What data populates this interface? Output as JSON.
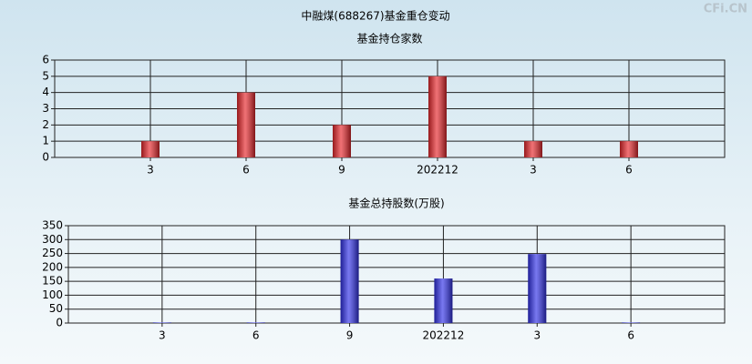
{
  "title": "中融煤(688267)基金重仓变动",
  "watermark": "CFi.CN",
  "chart_data": [
    {
      "type": "bar",
      "title": "基金持仓家数",
      "categories": [
        "3",
        "6",
        "9",
        "202212",
        "3",
        "6"
      ],
      "values": [
        1,
        4,
        2,
        5,
        1,
        1
      ],
      "color": "#e8262b",
      "ylim": [
        0,
        6
      ],
      "yticks": [
        0,
        1,
        2,
        3,
        4,
        5,
        6
      ],
      "grid": true
    },
    {
      "type": "bar",
      "title": "基金总持股数(万股)",
      "categories": [
        "3",
        "6",
        "9",
        "202212",
        "3",
        "6"
      ],
      "values": [
        2,
        2,
        300,
        160,
        248,
        2
      ],
      "color": "#3030e8",
      "ylim": [
        0,
        350
      ],
      "yticks": [
        0,
        50,
        100,
        150,
        200,
        250,
        300,
        350
      ],
      "grid": true
    }
  ]
}
